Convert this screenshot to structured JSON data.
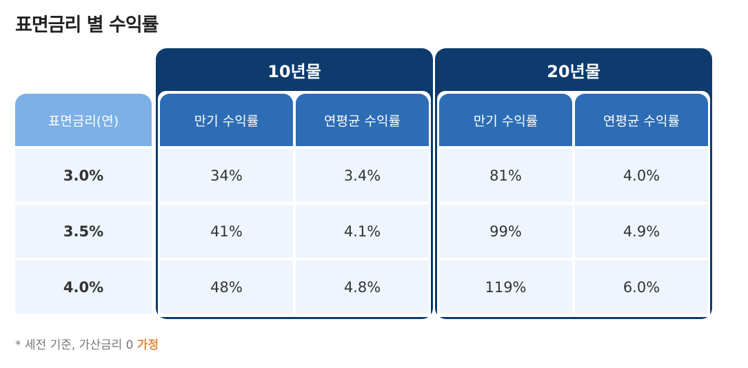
{
  "title": "표면금리 별 수익률",
  "chart_data": {
    "type": "table",
    "row_header": "표면금리(연)",
    "rows": [
      "3.0%",
      "3.5%",
      "4.0%"
    ],
    "groups": [
      {
        "name": "10년물",
        "columns": [
          "만기 수익률",
          "연평균 수익률"
        ],
        "values": [
          [
            "34%",
            "3.4%"
          ],
          [
            "41%",
            "4.1%"
          ],
          [
            "48%",
            "4.8%"
          ]
        ]
      },
      {
        "name": "20년물",
        "columns": [
          "만기 수익률",
          "연평균 수익률"
        ],
        "values": [
          [
            "81%",
            "4.0%"
          ],
          [
            "99%",
            "4.9%"
          ],
          [
            "119%",
            "6.0%"
          ]
        ]
      }
    ]
  },
  "footnote": {
    "text": "* 세전 기준, 가산금리 0",
    "highlight": "가정"
  },
  "colors": {
    "group_header": "#0d3b6e",
    "sub_header": "#2d6db5",
    "rate_header": "#7cb0e6",
    "cell_bg": "#eef5fd",
    "highlight": "#e08a3c"
  }
}
